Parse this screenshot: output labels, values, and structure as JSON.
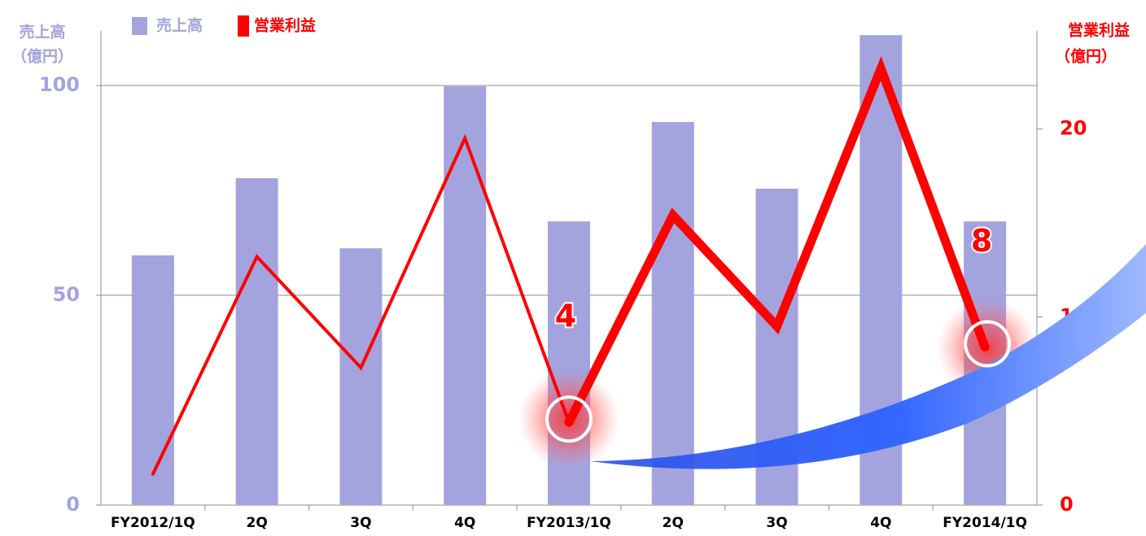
{
  "chart_data": {
    "type": "bar-line",
    "categories": [
      "FY2012/1Q",
      "2Q",
      "3Q",
      "4Q",
      "FY2013/1Q",
      "2Q",
      "3Q",
      "4Q",
      "FY2014/1Q"
    ],
    "y_label": "売上高",
    "y_label_unit": "（億円）",
    "y2_label": "営業利益",
    "y2_label_unit": "（億円）",
    "ylim": [
      0,
      113
    ],
    "yticks": [
      0,
      50,
      100
    ],
    "y2lim": [
      0,
      25.2
    ],
    "y2ticks": [
      0,
      10,
      20
    ],
    "grid": true,
    "series": [
      {
        "name": "売上高",
        "type": "bar",
        "color": "#a3a3de",
        "values": [
          59.5,
          77.9,
          61.2,
          99.8,
          67.6,
          91.3,
          75.4,
          112,
          67.6
        ]
      },
      {
        "name": "営業利益",
        "type": "line",
        "axis": "y2",
        "color": "#ff0000",
        "emphasis_from_index": 4,
        "values": [
          1.65,
          13.2,
          7.3,
          19.5,
          4.4,
          15.4,
          9.5,
          23.2,
          8.4
        ],
        "value_labels": [
          null,
          null,
          null,
          null,
          "4",
          null,
          null,
          null,
          "8"
        ]
      }
    ]
  }
}
